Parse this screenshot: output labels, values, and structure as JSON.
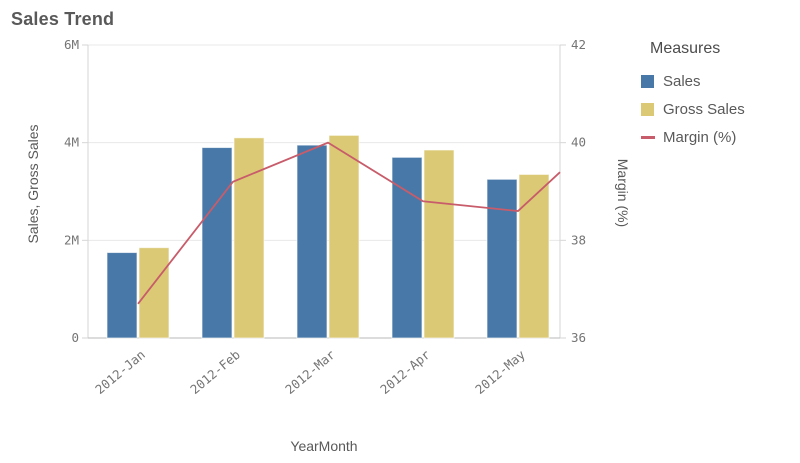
{
  "title": "Sales Trend",
  "colors": {
    "sales_bar": "#4878a8",
    "gross_sales_bar": "#dbc975",
    "margin_line": "#c85c6a",
    "grid_line": "#e8e8e8",
    "axis_line": "#d6d6d6",
    "baseline": "#b9b9b9",
    "tick_text": "#757575",
    "title_text": "#595959"
  },
  "chart_data": {
    "type": "combo",
    "title": "Sales Trend",
    "categories": [
      "2012-Jan",
      "2012-Feb",
      "2012-Mar",
      "2012-Apr",
      "2012-May"
    ],
    "series": [
      {
        "name": "Sales",
        "type": "bar",
        "axis": "left",
        "values": [
          1750000,
          3900000,
          3950000,
          3700000,
          3250000
        ]
      },
      {
        "name": "Gross Sales",
        "type": "bar",
        "axis": "left",
        "values": [
          1850000,
          4100000,
          4150000,
          3850000,
          3350000
        ]
      },
      {
        "name": "Margin (%)",
        "type": "line",
        "axis": "right",
        "values": [
          36.7,
          39.2,
          40.0,
          38.8,
          38.6
        ],
        "clipped_next_value": 40.4
      }
    ],
    "xlabel": "YearMonth",
    "ylabel_left": "Sales, Gross Sales",
    "ylabel_right": "Margin (%)",
    "left_axis": {
      "min": 0,
      "max": 6000000,
      "tick_values": [
        0,
        2000000,
        4000000,
        6000000
      ],
      "tick_labels": [
        "0",
        "2M",
        "4M",
        "6M"
      ]
    },
    "right_axis": {
      "min": 36,
      "max": 42,
      "tick_values": [
        36,
        38,
        40,
        42
      ],
      "tick_labels": [
        "36",
        "38",
        "40",
        "42"
      ]
    },
    "grid": true,
    "legend_position": "right"
  },
  "legend": {
    "title": "Measures",
    "items": [
      {
        "label": "Sales",
        "swatch": "square",
        "color": "#4878a8"
      },
      {
        "label": "Gross Sales",
        "swatch": "square",
        "color": "#dbc975"
      },
      {
        "label": "Margin (%)",
        "swatch": "line",
        "color": "#c85c6a"
      }
    ]
  }
}
